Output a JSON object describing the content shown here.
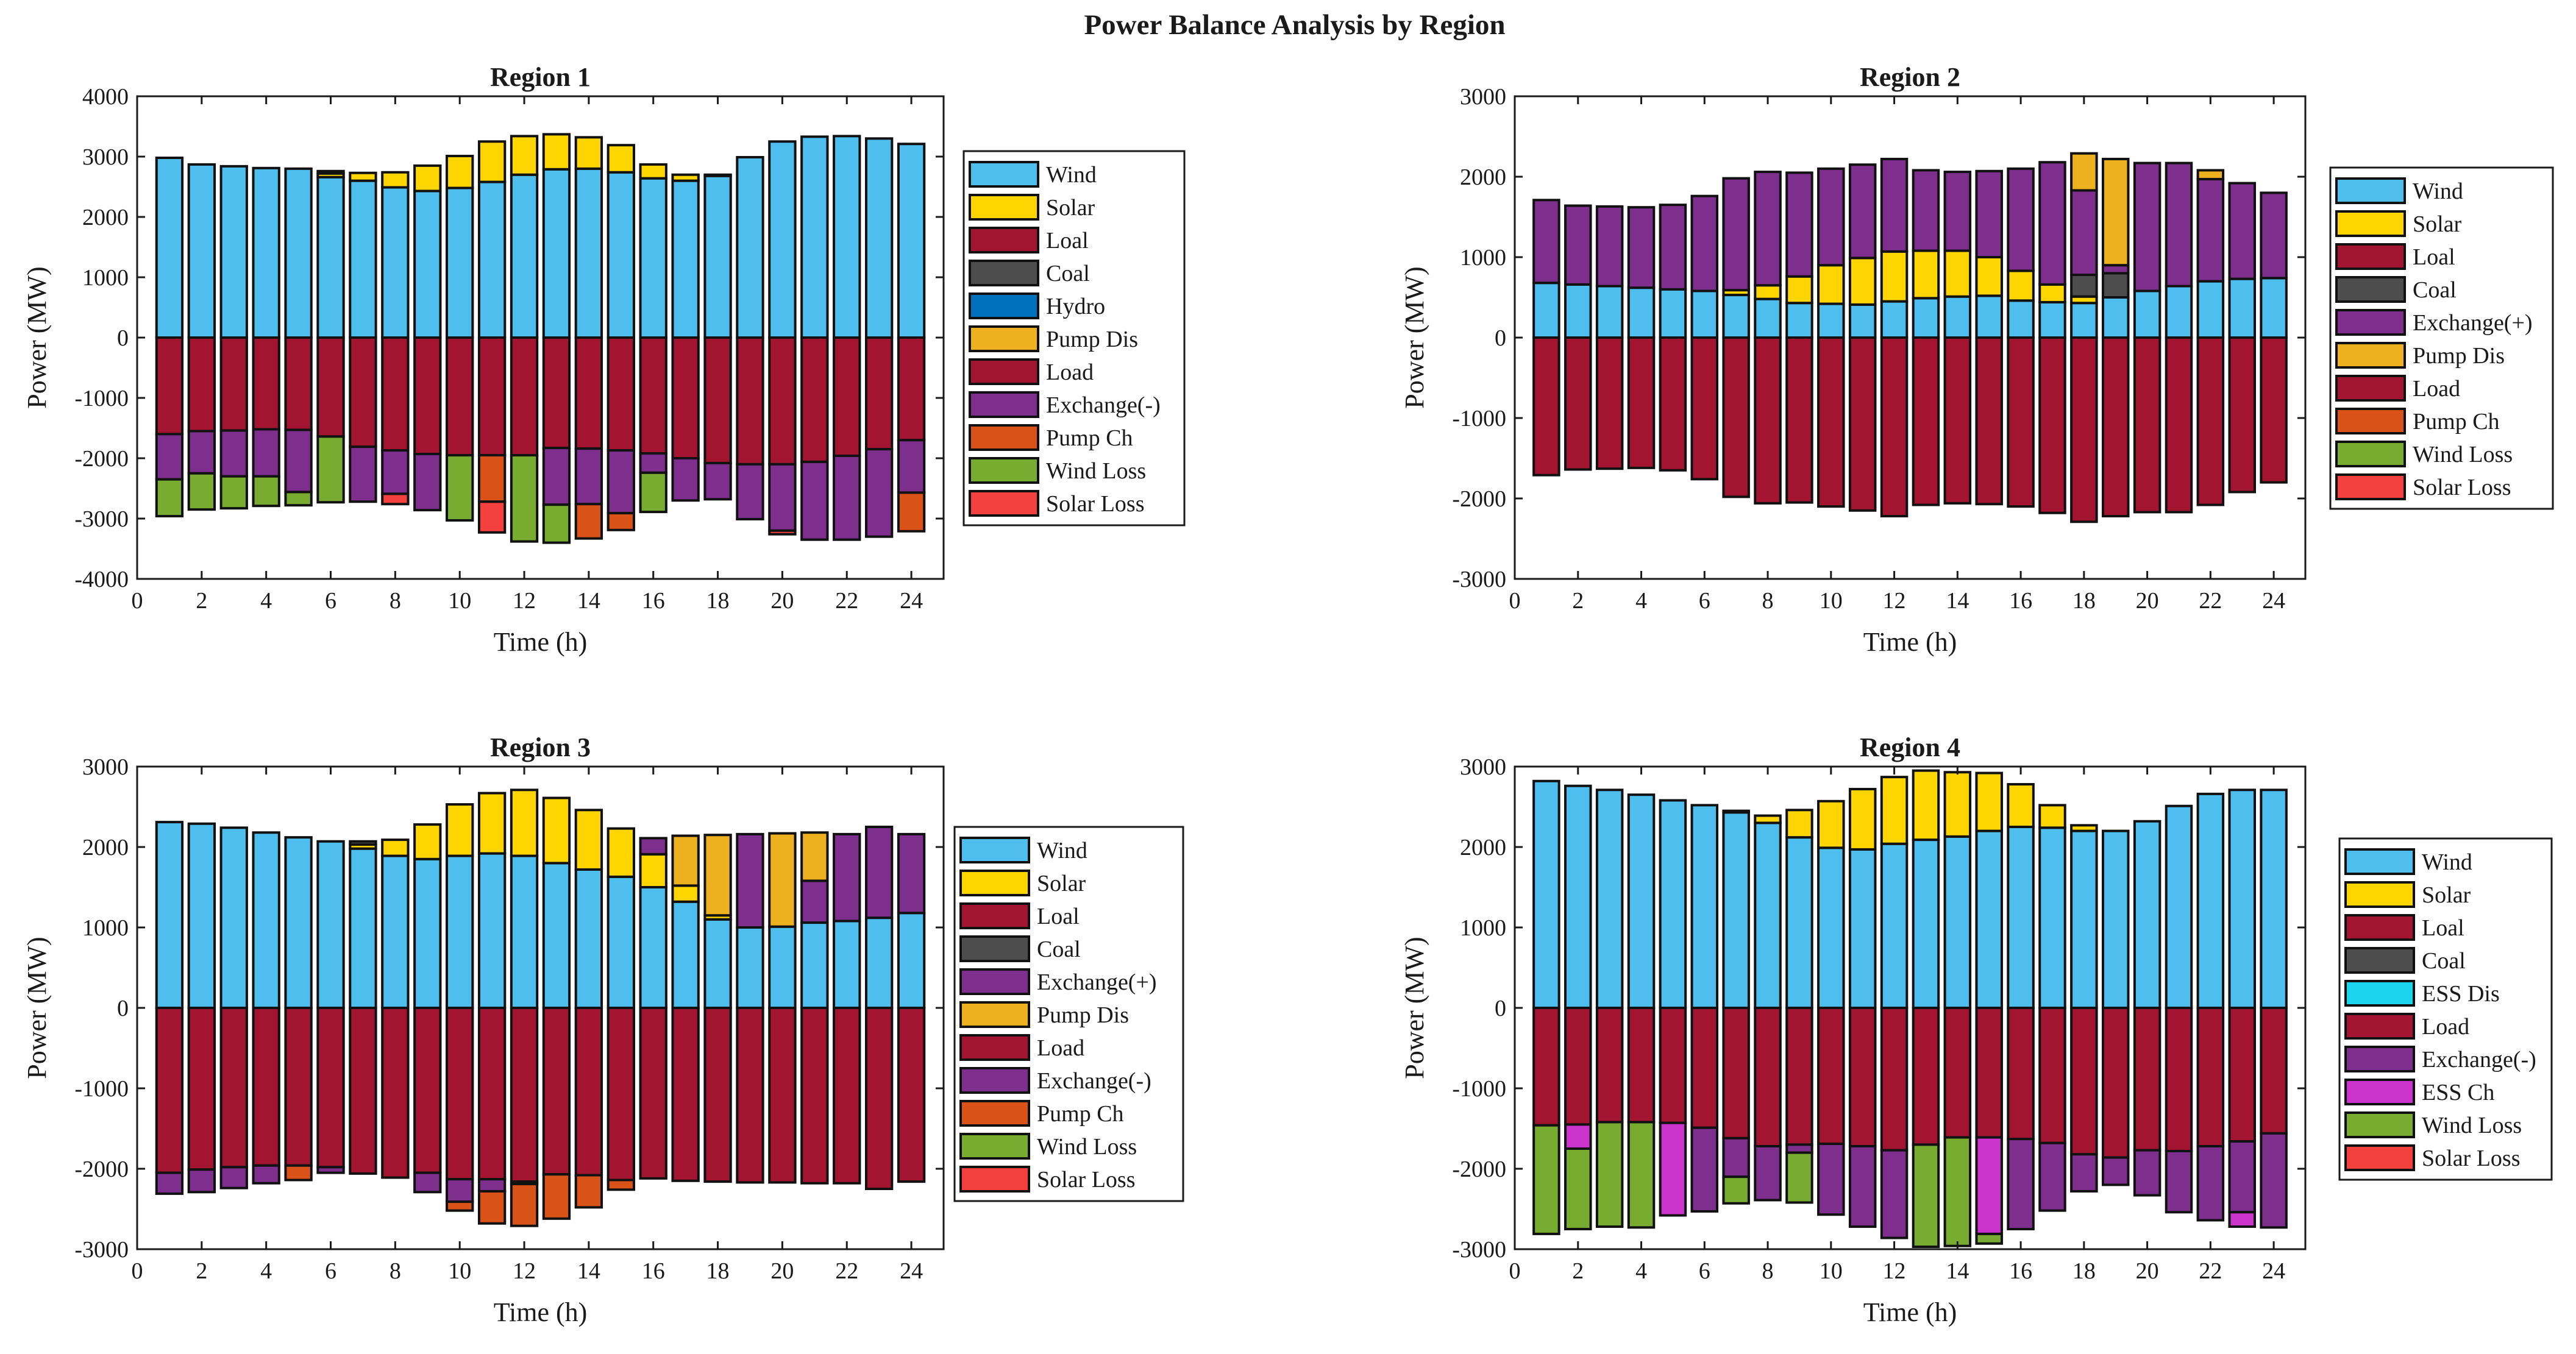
{
  "figure_title": "Power Balance Analysis by Region",
  "colors": {
    "Wind": "#4DBEEE",
    "Solar": "#FFD500",
    "Loal": "#A2142F",
    "Coal": "#4D4D4D",
    "Hydro": "#0072BD",
    "Pump Dis": "#EDB120",
    "Load": "#A2142F",
    "Exchange(-)": "#7E2F8E",
    "Exchange(+)": "#7E2F8E",
    "Pump Ch": "#D95319",
    "Wind Loss": "#77AC30",
    "Solar Loss": "#F54040",
    "ESS Dis": "#1AD4EE",
    "ESS Ch": "#CC33CC"
  },
  "chart_data": [
    {
      "type": "bar",
      "stacked": true,
      "title": "Region 1",
      "xlabel": "Time (h)",
      "ylabel": "Power (MW)",
      "xlim": [
        0,
        25
      ],
      "ylim": [
        -4000,
        4000
      ],
      "xticks": [
        0,
        2,
        4,
        6,
        8,
        10,
        12,
        14,
        16,
        18,
        20,
        22,
        24
      ],
      "yticks": [
        -4000,
        -3000,
        -2000,
        -1000,
        0,
        1000,
        2000,
        3000,
        4000
      ],
      "legend_position": "right",
      "legend": [
        "Wind",
        "Solar",
        "Loal",
        "Coal",
        "Hydro",
        "Pump Dis",
        "Load",
        "Exchange(-)",
        "Pump Ch",
        "Wind Loss",
        "Solar Loss"
      ],
      "categories": [
        1,
        2,
        3,
        4,
        5,
        6,
        7,
        8,
        9,
        10,
        11,
        12,
        13,
        14,
        15,
        16,
        17,
        18,
        19,
        20,
        21,
        22,
        23,
        24
      ],
      "series": [
        {
          "name": "Wind",
          "values": [
            2980,
            2870,
            2840,
            2810,
            2800,
            2660,
            2600,
            2490,
            2430,
            2480,
            2580,
            2700,
            2790,
            2800,
            2740,
            2640,
            2600,
            2680,
            2990,
            3250,
            3330,
            3340,
            3300,
            3210
          ]
        },
        {
          "name": "Solar",
          "values": [
            0,
            0,
            0,
            0,
            0,
            60,
            130,
            250,
            420,
            530,
            670,
            640,
            580,
            520,
            450,
            230,
            100,
            20,
            0,
            0,
            0,
            0,
            0,
            0
          ]
        },
        {
          "name": "Coal",
          "values": [
            0,
            0,
            0,
            0,
            0,
            40,
            0,
            0,
            0,
            0,
            0,
            0,
            0,
            0,
            0,
            0,
            0,
            0,
            0,
            0,
            0,
            0,
            0,
            0
          ]
        },
        {
          "name": "Load",
          "values": [
            -1600,
            -1550,
            -1540,
            -1520,
            -1530,
            -1640,
            -1810,
            -1870,
            -1930,
            -1950,
            -1950,
            -1950,
            -1830,
            -1840,
            -1870,
            -1920,
            -2000,
            -2080,
            -2100,
            -2100,
            -2060,
            -1960,
            -1850,
            -1700
          ]
        },
        {
          "name": "Exchange(-)",
          "values": [
            -750,
            -700,
            -760,
            -780,
            -1030,
            0,
            -910,
            -720,
            -930,
            0,
            0,
            0,
            -940,
            -920,
            -1040,
            -320,
            -700,
            -600,
            -910,
            -1100,
            -1290,
            -1390,
            -1450,
            -870
          ]
        },
        {
          "name": "Pump Ch",
          "values": [
            0,
            0,
            0,
            0,
            0,
            0,
            0,
            0,
            0,
            0,
            -770,
            0,
            0,
            -570,
            -280,
            0,
            0,
            0,
            0,
            0,
            0,
            0,
            0,
            -640
          ]
        },
        {
          "name": "Wind Loss",
          "values": [
            -610,
            -600,
            -530,
            -490,
            -220,
            -1090,
            0,
            0,
            0,
            -1080,
            0,
            -1430,
            -630,
            0,
            0,
            -650,
            0,
            0,
            0,
            0,
            0,
            0,
            0,
            0
          ]
        },
        {
          "name": "Solar Loss",
          "values": [
            0,
            0,
            0,
            0,
            0,
            0,
            0,
            -170,
            0,
            0,
            -510,
            0,
            0,
            0,
            0,
            0,
            0,
            0,
            0,
            -60,
            0,
            0,
            0,
            0
          ]
        }
      ]
    },
    {
      "type": "bar",
      "stacked": true,
      "title": "Region 2",
      "xlabel": "Time (h)",
      "ylabel": "Power (MW)",
      "xlim": [
        0,
        25
      ],
      "ylim": [
        -3000,
        3000
      ],
      "xticks": [
        0,
        2,
        4,
        6,
        8,
        10,
        12,
        14,
        16,
        18,
        20,
        22,
        24
      ],
      "yticks": [
        -3000,
        -2000,
        -1000,
        0,
        1000,
        2000,
        3000
      ],
      "legend_position": "right",
      "legend": [
        "Wind",
        "Solar",
        "Loal",
        "Coal",
        "Exchange(+)",
        "Pump Dis",
        "Load",
        "Pump Ch",
        "Wind Loss",
        "Solar Loss"
      ],
      "categories": [
        1,
        2,
        3,
        4,
        5,
        6,
        7,
        8,
        9,
        10,
        11,
        12,
        13,
        14,
        15,
        16,
        17,
        18,
        19,
        20,
        21,
        22,
        23,
        24
      ],
      "series": [
        {
          "name": "Wind",
          "values": [
            680,
            660,
            640,
            620,
            600,
            580,
            530,
            480,
            430,
            420,
            410,
            450,
            490,
            510,
            520,
            460,
            440,
            430,
            500,
            580,
            640,
            700,
            730,
            740
          ]
        },
        {
          "name": "Solar",
          "values": [
            0,
            0,
            0,
            0,
            0,
            0,
            60,
            170,
            330,
            480,
            580,
            620,
            590,
            570,
            480,
            370,
            220,
            80,
            0,
            0,
            0,
            0,
            0,
            0
          ]
        },
        {
          "name": "Coal",
          "values": [
            0,
            0,
            0,
            0,
            0,
            0,
            0,
            0,
            0,
            0,
            0,
            0,
            0,
            0,
            0,
            0,
            0,
            270,
            300,
            0,
            0,
            0,
            0,
            0
          ]
        },
        {
          "name": "Exchange(+)",
          "values": [
            1030,
            980,
            990,
            1000,
            1050,
            1180,
            1390,
            1410,
            1290,
            1200,
            1160,
            1150,
            1000,
            980,
            1070,
            1270,
            1520,
            1050,
            100,
            1590,
            1530,
            1270,
            1190,
            1060
          ]
        },
        {
          "name": "Pump Dis",
          "values": [
            0,
            0,
            0,
            0,
            0,
            0,
            0,
            0,
            0,
            0,
            0,
            0,
            0,
            0,
            0,
            0,
            0,
            460,
            1320,
            0,
            0,
            110,
            0,
            0
          ]
        },
        {
          "name": "Load",
          "values": [
            -1710,
            -1640,
            -1630,
            -1620,
            -1650,
            -1760,
            -1980,
            -2060,
            -2050,
            -2100,
            -2150,
            -2220,
            -2080,
            -2060,
            -2070,
            -2100,
            -2180,
            -2290,
            -2220,
            -2170,
            -2170,
            -2080,
            -1920,
            -1800
          ]
        }
      ]
    },
    {
      "type": "bar",
      "stacked": true,
      "title": "Region 3",
      "xlabel": "Time (h)",
      "ylabel": "Power (MW)",
      "xlim": [
        0,
        25
      ],
      "ylim": [
        -3000,
        3000
      ],
      "xticks": [
        0,
        2,
        4,
        6,
        8,
        10,
        12,
        14,
        16,
        18,
        20,
        22,
        24
      ],
      "yticks": [
        -3000,
        -2000,
        -1000,
        0,
        1000,
        2000,
        3000
      ],
      "legend_position": "right",
      "legend": [
        "Wind",
        "Solar",
        "Loal",
        "Coal",
        "Exchange(+)",
        "Pump Dis",
        "Load",
        "Exchange(-)",
        "Pump Ch",
        "Wind Loss",
        "Solar Loss"
      ],
      "categories": [
        1,
        2,
        3,
        4,
        5,
        6,
        7,
        8,
        9,
        10,
        11,
        12,
        13,
        14,
        15,
        16,
        17,
        18,
        19,
        20,
        21,
        22,
        23,
        24
      ],
      "series": [
        {
          "name": "Wind",
          "values": [
            2310,
            2290,
            2240,
            2180,
            2120,
            2070,
            1980,
            1890,
            1850,
            1890,
            1920,
            1890,
            1800,
            1720,
            1630,
            1500,
            1320,
            1100,
            1000,
            1010,
            1060,
            1080,
            1120,
            1180
          ]
        },
        {
          "name": "Solar",
          "values": [
            0,
            0,
            0,
            0,
            0,
            0,
            50,
            200,
            430,
            640,
            750,
            820,
            810,
            740,
            600,
            410,
            200,
            50,
            0,
            0,
            0,
            0,
            0,
            0
          ]
        },
        {
          "name": "Coal",
          "values": [
            0,
            0,
            0,
            0,
            0,
            0,
            40,
            0,
            0,
            0,
            0,
            0,
            0,
            0,
            0,
            0,
            0,
            0,
            0,
            0,
            0,
            0,
            0,
            0
          ]
        },
        {
          "name": "Exchange(+)",
          "values": [
            0,
            0,
            0,
            0,
            0,
            0,
            0,
            0,
            0,
            0,
            0,
            0,
            0,
            0,
            0,
            200,
            0,
            0,
            1160,
            0,
            520,
            1080,
            1130,
            980
          ]
        },
        {
          "name": "Pump Dis",
          "values": [
            0,
            0,
            0,
            0,
            0,
            0,
            0,
            0,
            0,
            0,
            0,
            0,
            0,
            0,
            0,
            0,
            620,
            1000,
            0,
            1160,
            600,
            0,
            0,
            0
          ]
        },
        {
          "name": "Load",
          "values": [
            -2050,
            -2010,
            -1980,
            -1960,
            -1960,
            -1980,
            -2060,
            -2110,
            -2050,
            -2130,
            -2130,
            -2160,
            -2070,
            -2080,
            -2140,
            -2120,
            -2150,
            -2160,
            -2170,
            -2170,
            -2180,
            -2180,
            -2250,
            -2160
          ]
        },
        {
          "name": "Exchange(-)",
          "values": [
            -260,
            -280,
            -260,
            -220,
            0,
            -70,
            0,
            0,
            -240,
            -280,
            -150,
            -30,
            0,
            0,
            0,
            0,
            0,
            0,
            0,
            0,
            0,
            0,
            0,
            0
          ]
        },
        {
          "name": "Pump Ch",
          "values": [
            0,
            0,
            0,
            0,
            -180,
            0,
            0,
            0,
            0,
            -110,
            -400,
            -520,
            -550,
            -400,
            -120,
            0,
            0,
            0,
            0,
            0,
            0,
            0,
            0,
            0
          ]
        }
      ]
    },
    {
      "type": "bar",
      "stacked": true,
      "title": "Region 4",
      "xlabel": "Time (h)",
      "ylabel": "Power (MW)",
      "xlim": [
        0,
        25
      ],
      "ylim": [
        -3000,
        3000
      ],
      "xticks": [
        0,
        2,
        4,
        6,
        8,
        10,
        12,
        14,
        16,
        18,
        20,
        22,
        24
      ],
      "yticks": [
        -3000,
        -2000,
        -1000,
        0,
        1000,
        2000,
        3000
      ],
      "legend_position": "right",
      "legend": [
        "Wind",
        "Solar",
        "Loal",
        "Coal",
        "ESS Dis",
        "Load",
        "Exchange(-)",
        "ESS Ch",
        "Wind Loss",
        "Solar Loss"
      ],
      "categories": [
        1,
        2,
        3,
        4,
        5,
        6,
        7,
        8,
        9,
        10,
        11,
        12,
        13,
        14,
        15,
        16,
        17,
        18,
        19,
        20,
        21,
        22,
        23,
        24
      ],
      "series": [
        {
          "name": "Wind",
          "values": [
            2820,
            2760,
            2710,
            2650,
            2580,
            2520,
            2430,
            2300,
            2120,
            1990,
            1970,
            2040,
            2090,
            2130,
            2200,
            2250,
            2240,
            2200,
            2200,
            2320,
            2510,
            2660,
            2710,
            2710
          ]
        },
        {
          "name": "Solar",
          "values": [
            0,
            0,
            0,
            0,
            0,
            0,
            20,
            90,
            340,
            580,
            750,
            830,
            860,
            800,
            720,
            530,
            280,
            70,
            0,
            0,
            0,
            0,
            0,
            0
          ]
        },
        {
          "name": "Load",
          "values": [
            -1460,
            -1450,
            -1420,
            -1420,
            -1430,
            -1490,
            -1620,
            -1720,
            -1700,
            -1690,
            -1720,
            -1770,
            -1700,
            -1610,
            -1610,
            -1630,
            -1680,
            -1820,
            -1860,
            -1770,
            -1780,
            -1720,
            -1660,
            -1560
          ]
        },
        {
          "name": "Exchange(-)",
          "values": [
            0,
            0,
            0,
            0,
            0,
            -1040,
            -480,
            -670,
            -100,
            -880,
            -1000,
            -1090,
            0,
            0,
            0,
            -1120,
            -840,
            -460,
            -340,
            -560,
            -760,
            -920,
            -880,
            -1170
          ]
        },
        {
          "name": "ESS Ch",
          "values": [
            0,
            -300,
            0,
            0,
            -1150,
            0,
            0,
            0,
            0,
            0,
            0,
            0,
            0,
            0,
            -1200,
            0,
            0,
            0,
            0,
            0,
            0,
            0,
            -180,
            0
          ]
        },
        {
          "name": "Wind Loss",
          "values": [
            -1350,
            -1000,
            -1300,
            -1310,
            0,
            0,
            -330,
            0,
            -620,
            0,
            0,
            0,
            -1270,
            -1350,
            -120,
            0,
            0,
            0,
            0,
            0,
            0,
            0,
            0,
            0
          ]
        },
        {
          "name": "Solar Loss",
          "values": [
            0,
            0,
            0,
            0,
            0,
            0,
            0,
            0,
            0,
            0,
            0,
            0,
            0,
            0,
            0,
            0,
            0,
            0,
            0,
            0,
            0,
            0,
            0,
            0
          ]
        }
      ]
    }
  ]
}
